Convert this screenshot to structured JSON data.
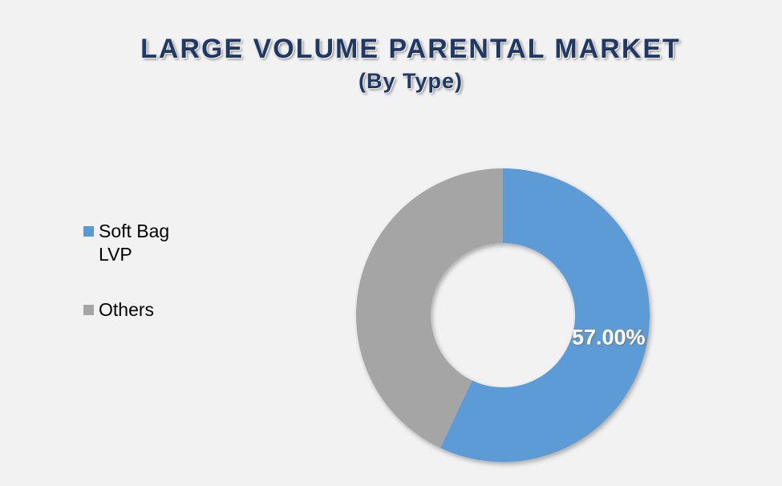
{
  "chart_data": {
    "type": "donut",
    "title": "LARGE VOLUME PARENTAL MARKET",
    "subtitle": "(By Type)",
    "categories": [
      "Soft Bag LVP",
      "Others"
    ],
    "values": [
      57,
      43
    ],
    "value_labels": [
      "57.00%",
      null
    ],
    "colors": [
      "#5b9bd5",
      "#a5a5a5"
    ],
    "legend": "left"
  }
}
